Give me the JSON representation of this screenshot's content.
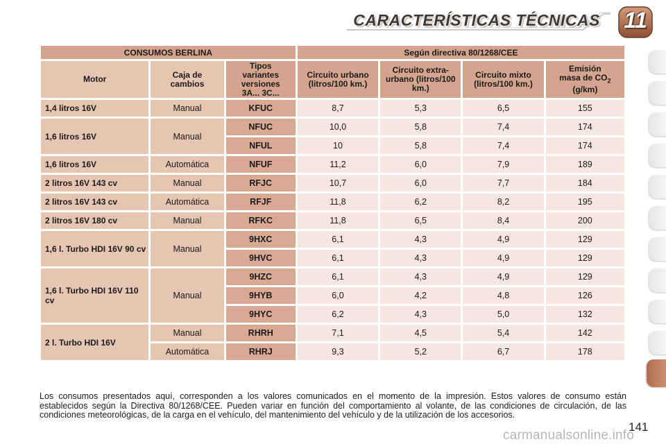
{
  "header": {
    "title": "CARACTERÍSTICAS TÉCNICAS",
    "chapter": "11"
  },
  "table": {
    "section_label": "CONSUMOS BERLINA",
    "directive_label": "Según directiva 80/1268/CEE",
    "columns": {
      "motor": "Motor",
      "caja": "Caja de cambios",
      "tipos": "Tipos variantes versiones 3A... 3C...",
      "urbano": "Circuito urbano (litros/100 km.)",
      "extra": "Circuito extra-urbano (litros/100 km.)",
      "mixto": "Circuito mixto (litros/100 km.)",
      "emision_prefix": "Emisión masa de CO",
      "emision_sub": "2",
      "emision_suffix": " (g/km)"
    },
    "groups": [
      {
        "motor": "1,4 litros 16V",
        "rows": [
          {
            "caja": "Manual",
            "tipo": "KFUC",
            "urbano": "8,7",
            "extra": "5,3",
            "mixto": "6,5",
            "co2": "155"
          }
        ]
      },
      {
        "motor": "1,6 litros 16V",
        "rows": [
          {
            "caja": "Manual",
            "tipo": "NFUC",
            "urbano": "10,0",
            "extra": "5,8",
            "mixto": "7,4",
            "co2": "174"
          },
          {
            "caja": "",
            "tipo": "NFUL",
            "urbano": "10",
            "extra": "5,8",
            "mixto": "7,4",
            "co2": "174"
          }
        ]
      },
      {
        "motor": "1,6 litros 16V",
        "rows": [
          {
            "caja": "Automática",
            "tipo": "NFUF",
            "urbano": "11,2",
            "extra": "6,0",
            "mixto": "7,9",
            "co2": "189"
          }
        ]
      },
      {
        "motor": "2 litros 16V 143 cv",
        "rows": [
          {
            "caja": "Manual",
            "tipo": "RFJC",
            "urbano": "10,7",
            "extra": "6,0",
            "mixto": "7,7",
            "co2": "184"
          }
        ]
      },
      {
        "motor": "2 litros 16V 143 cv",
        "rows": [
          {
            "caja": "Automática",
            "tipo": "RFJF",
            "urbano": "11,8",
            "extra": "6,2",
            "mixto": "8,2",
            "co2": "195"
          }
        ]
      },
      {
        "motor": "2 litros 16V 180 cv",
        "rows": [
          {
            "caja": "Manual",
            "tipo": "RFKC",
            "urbano": "11,8",
            "extra": "6,5",
            "mixto": "8,4",
            "co2": "200"
          }
        ]
      },
      {
        "motor": "1,6 l. Turbo HDI 16V 90 cv",
        "rows": [
          {
            "caja": "Manual",
            "tipo": "9HXC",
            "urbano": "6,1",
            "extra": "4,3",
            "mixto": "4,9",
            "co2": "129"
          },
          {
            "caja": "",
            "tipo": "9HVC",
            "urbano": "6,1",
            "extra": "4,3",
            "mixto": "4,9",
            "co2": "129"
          }
        ]
      },
      {
        "motor": "1,6 l. Turbo HDI 16V 110 cv",
        "rows": [
          {
            "caja": "Manual",
            "tipo": "9HZC",
            "urbano": "6,1",
            "extra": "4,3",
            "mixto": "4,9",
            "co2": "129"
          },
          {
            "caja": "",
            "tipo": "9HYB",
            "urbano": "6,0",
            "extra": "4,2",
            "mixto": "4,8",
            "co2": "126"
          },
          {
            "caja": "",
            "tipo": "9HYC",
            "urbano": "6,2",
            "extra": "4,3",
            "mixto": "5,0",
            "co2": "132"
          }
        ]
      },
      {
        "motor": "2 l. Turbo HDI 16V",
        "rows": [
          {
            "caja": "Manual",
            "tipo": "RHRH",
            "urbano": "7,1",
            "extra": "4,5",
            "mixto": "5,4",
            "co2": "142"
          },
          {
            "caja": "Automática",
            "tipo": "RHRJ",
            "urbano": "9,3",
            "extra": "5,2",
            "mixto": "6,7",
            "co2": "178"
          }
        ]
      }
    ]
  },
  "note": "Los consumos presentados aquí, corresponden a los valores comunicados en el momento de la impresión. Estos valores de consumo están establecidos según la Directiva 80/1268/CEE. Pueden variar en función del comportamiento al volante, de las condiciones de circulación, de las condiciones meteorológicas, de la carga en el vehículo, del mantenimiento del vehículo y de la utilización de los accesorios.",
  "page_number": "141",
  "watermark": "carmanualsonline.info",
  "colors": {
    "header_cell": "#d5a48e",
    "label_cell": "#e7c5b3",
    "code_cell": "#d9a993",
    "value_cell": "#f6e6df",
    "active_tab": "#c07e60"
  }
}
